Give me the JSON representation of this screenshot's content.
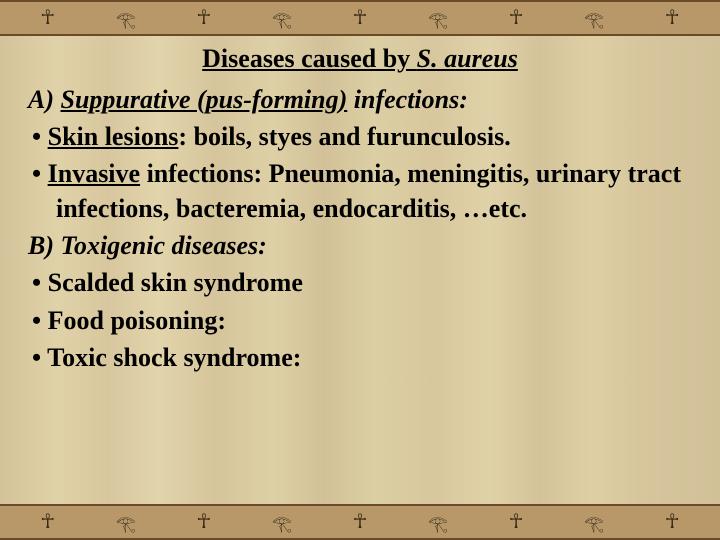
{
  "colors": {
    "papyrus_base": "#d8c79e",
    "border_band": "#b89868",
    "border_rule": "#6b4a2a",
    "text": "#000000",
    "motif_dark": "#3a2a15"
  },
  "typography": {
    "family": "Times New Roman",
    "title_fontsize_pt": 20,
    "body_fontsize_pt": 20,
    "weight": "bold"
  },
  "decorative_border": {
    "motif_sequence": [
      "ankh",
      "eye",
      "ankh",
      "eye",
      "ankh",
      "eye",
      "ankh",
      "eye",
      "ankh"
    ],
    "glyphs": {
      "ankh": "☥",
      "eye": "𓂀"
    }
  },
  "title": {
    "prefix": "Diseases caused by ",
    "organism": "S. aureus"
  },
  "sections": [
    {
      "heading_label": "A)",
      "heading_text": "Suppurative (pus-forming)",
      "heading_suffix": " infections:",
      "heading_italic": true,
      "heading_underline": true,
      "bullets": [
        {
          "lead": "Skin lesions",
          "rest": ": boils, styes and furunculosis."
        },
        {
          "lead": "Invasive",
          "rest": " infections: Pneumonia, meningitis, urinary tract infections, bacteremia, endocarditis, …etc."
        }
      ]
    },
    {
      "heading_label": "B)",
      "heading_text": "Toxigenic diseases:",
      "heading_suffix": "",
      "heading_italic": true,
      "heading_underline": false,
      "bullets": [
        {
          "lead": "",
          "rest": "Scalded skin syndrome"
        },
        {
          "lead": "",
          "rest": " Food poisoning:"
        },
        {
          "lead": "",
          "rest": "Toxic shock syndrome:"
        }
      ]
    }
  ]
}
